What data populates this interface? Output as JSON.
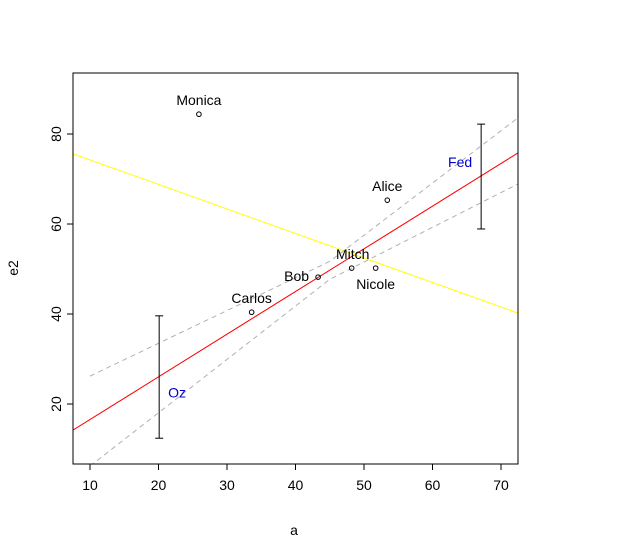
{
  "chart_data": {
    "type": "scatter",
    "xlabel": "a",
    "ylabel": "e2",
    "xlim": [
      7.52,
      72.48
    ],
    "ylim": [
      6.67,
      93.56
    ],
    "xticks": [
      10,
      20,
      30,
      40,
      50,
      60,
      70
    ],
    "yticks": [
      20,
      40,
      60,
      80
    ],
    "points": {
      "labels": [
        "Monica",
        "Alice",
        "Mitch",
        "Nicole",
        "Bob",
        "Carlos"
      ],
      "x": [
        25.9,
        53.4,
        48.2,
        51.7,
        43.3,
        33.6
      ],
      "values": [
        84.4,
        65.3,
        50.2,
        50.2,
        48.2,
        40.4
      ],
      "color": "#000000"
    },
    "error_bars": [
      {
        "name": "Fed",
        "x": 67.1,
        "low": 58.9,
        "high": 82.2,
        "color": "#0000cc"
      },
      {
        "name": "Oz",
        "x": 20.1,
        "low": 12.4,
        "high": 39.6,
        "color": "#0000cc"
      }
    ],
    "lines": [
      {
        "color": "#ff0000",
        "dash": false,
        "x": [
          7.52,
          72.48
        ],
        "values": [
          14.2,
          75.8
        ]
      },
      {
        "color": "#ffff00",
        "dash": false,
        "x": [
          7.52,
          72.48
        ],
        "values": [
          75.6,
          40.2
        ]
      },
      {
        "color": "#b0b0b0",
        "dash": true,
        "x": [
          10,
          45,
          72.48
        ],
        "values": [
          26.2,
          51.7,
          83.6
        ]
      },
      {
        "color": "#b0b0b0",
        "dash": true,
        "x": [
          10,
          45,
          72.48
        ],
        "values": [
          6.2,
          47.7,
          68.9
        ]
      }
    ]
  }
}
